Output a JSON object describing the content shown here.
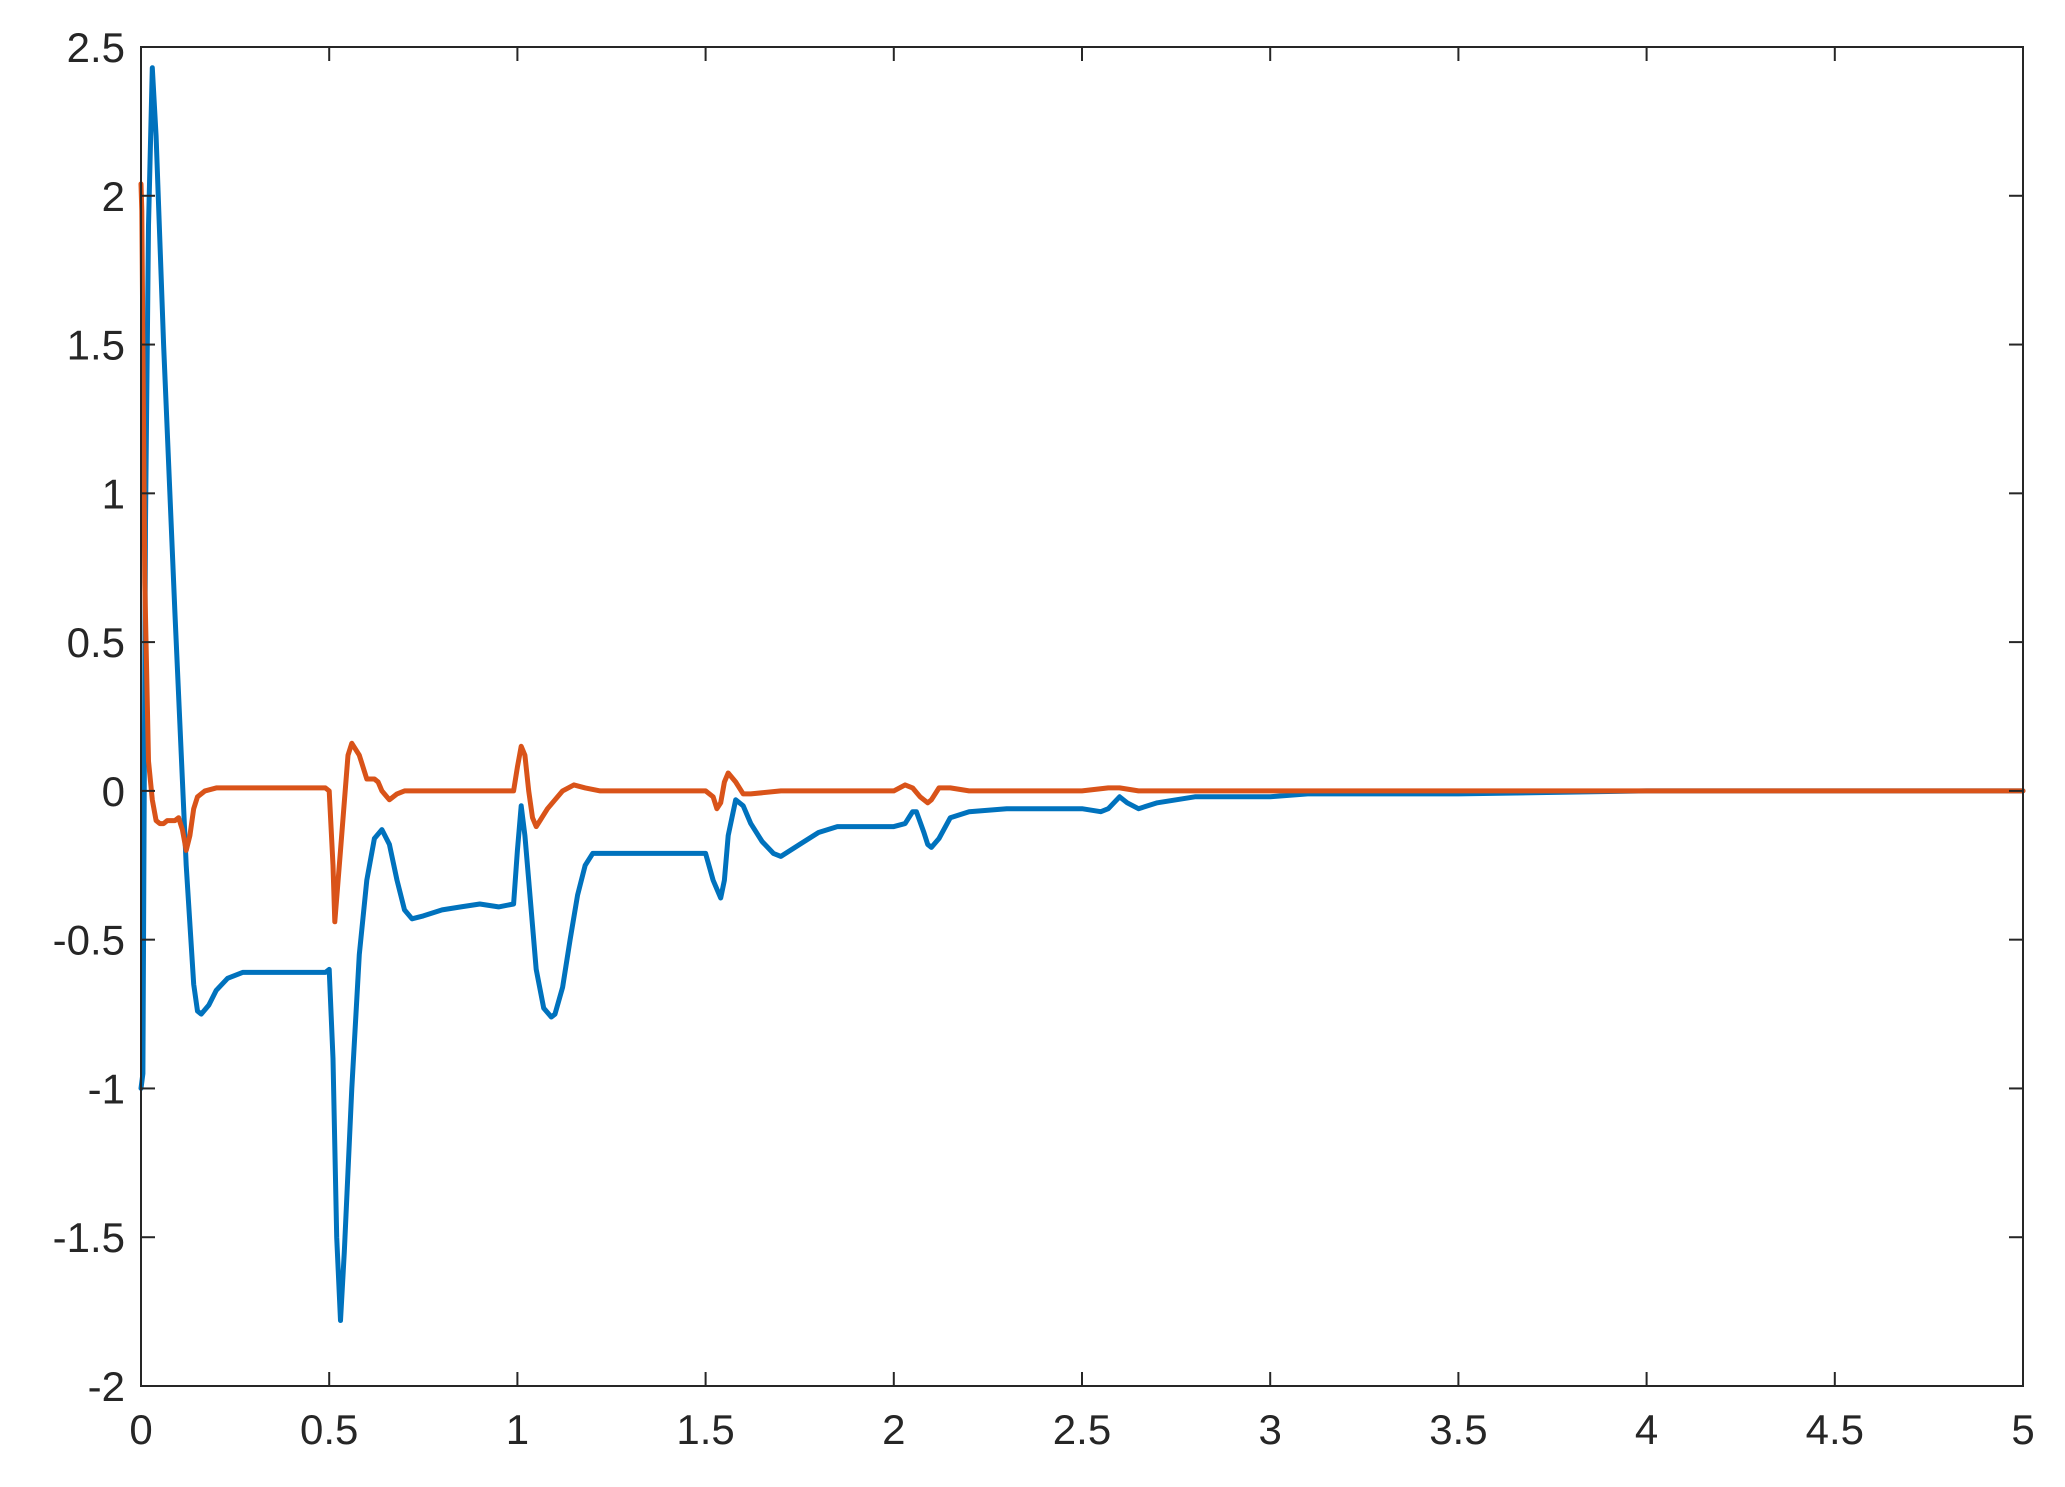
{
  "chart_data": {
    "type": "line",
    "title": "",
    "xlabel": "",
    "ylabel": "",
    "xlim": [
      0,
      5
    ],
    "ylim": [
      -2,
      2.5
    ],
    "xticks": [
      0,
      0.5,
      1,
      1.5,
      2,
      2.5,
      3,
      3.5,
      4,
      4.5,
      5
    ],
    "xtick_labels": [
      "0",
      "0.5",
      "1",
      "1.5",
      "2",
      "2.5",
      "3",
      "3.5",
      "4",
      "4.5",
      "5"
    ],
    "yticks": [
      -2,
      -1.5,
      -1,
      -0.5,
      0,
      0.5,
      1,
      1.5,
      2,
      2.5
    ],
    "ytick_labels": [
      "-2",
      "-1.5",
      "-1",
      "-0.5",
      "0",
      "0.5",
      "1",
      "1.5",
      "2",
      "2.5"
    ],
    "grid": false,
    "legend": "none",
    "series": [
      {
        "color": "#0072BD",
        "x": [
          0,
          0.005,
          0.012,
          0.02,
          0.03,
          0.04,
          0.06,
          0.09,
          0.12,
          0.14,
          0.15,
          0.16,
          0.18,
          0.2,
          0.23,
          0.27,
          0.3,
          0.35,
          0.4,
          0.45,
          0.49,
          0.5,
          0.51,
          0.52,
          0.53,
          0.54,
          0.56,
          0.58,
          0.6,
          0.62,
          0.64,
          0.66,
          0.68,
          0.7,
          0.72,
          0.75,
          0.8,
          0.85,
          0.9,
          0.95,
          0.99,
          1.0,
          1.01,
          1.02,
          1.03,
          1.05,
          1.07,
          1.09,
          1.1,
          1.12,
          1.14,
          1.16,
          1.18,
          1.2,
          1.25,
          1.3,
          1.35,
          1.4,
          1.45,
          1.5,
          1.52,
          1.54,
          1.55,
          1.56,
          1.58,
          1.6,
          1.62,
          1.65,
          1.68,
          1.7,
          1.75,
          1.8,
          1.85,
          1.9,
          1.95,
          2.0,
          2.03,
          2.05,
          2.06,
          2.08,
          2.09,
          2.1,
          2.12,
          2.15,
          2.2,
          2.3,
          2.4,
          2.5,
          2.55,
          2.57,
          2.6,
          2.62,
          2.65,
          2.7,
          2.8,
          2.9,
          3.0,
          3.1,
          3.2,
          3.5,
          4.0,
          4.5,
          5.0
        ],
        "y": [
          -1.0,
          -0.95,
          0.9,
          1.9,
          2.43,
          2.2,
          1.5,
          0.6,
          -0.25,
          -0.65,
          -0.74,
          -0.75,
          -0.72,
          -0.67,
          -0.63,
          -0.61,
          -0.61,
          -0.61,
          -0.61,
          -0.61,
          -0.61,
          -0.6,
          -0.9,
          -1.5,
          -1.78,
          -1.55,
          -1.0,
          -0.55,
          -0.3,
          -0.16,
          -0.13,
          -0.18,
          -0.3,
          -0.4,
          -0.43,
          -0.42,
          -0.4,
          -0.39,
          -0.38,
          -0.39,
          -0.38,
          -0.2,
          -0.05,
          -0.15,
          -0.3,
          -0.6,
          -0.73,
          -0.76,
          -0.75,
          -0.66,
          -0.5,
          -0.35,
          -0.25,
          -0.21,
          -0.21,
          -0.21,
          -0.21,
          -0.21,
          -0.21,
          -0.21,
          -0.3,
          -0.36,
          -0.3,
          -0.15,
          -0.03,
          -0.05,
          -0.11,
          -0.17,
          -0.21,
          -0.22,
          -0.18,
          -0.14,
          -0.12,
          -0.12,
          -0.12,
          -0.12,
          -0.11,
          -0.07,
          -0.07,
          -0.14,
          -0.18,
          -0.19,
          -0.16,
          -0.09,
          -0.07,
          -0.06,
          -0.06,
          -0.06,
          -0.07,
          -0.06,
          -0.02,
          -0.04,
          -0.06,
          -0.04,
          -0.02,
          -0.02,
          -0.02,
          -0.01,
          -0.01,
          -0.01,
          0.0,
          0.0,
          0.0
        ]
      },
      {
        "color": "#D95319",
        "x": [
          0,
          0.002,
          0.005,
          0.01,
          0.02,
          0.03,
          0.04,
          0.05,
          0.06,
          0.07,
          0.09,
          0.1,
          0.11,
          0.12,
          0.13,
          0.14,
          0.15,
          0.17,
          0.2,
          0.3,
          0.4,
          0.49,
          0.5,
          0.51,
          0.515,
          0.53,
          0.55,
          0.56,
          0.58,
          0.6,
          0.62,
          0.63,
          0.64,
          0.66,
          0.68,
          0.7,
          0.75,
          0.8,
          0.9,
          0.99,
          1.0,
          1.01,
          1.02,
          1.03,
          1.04,
          1.05,
          1.06,
          1.08,
          1.1,
          1.12,
          1.15,
          1.18,
          1.22,
          1.3,
          1.4,
          1.5,
          1.52,
          1.53,
          1.54,
          1.55,
          1.56,
          1.58,
          1.6,
          1.62,
          1.7,
          1.8,
          1.9,
          2.0,
          2.03,
          2.05,
          2.07,
          2.09,
          2.1,
          2.12,
          2.15,
          2.2,
          2.5,
          2.57,
          2.6,
          2.65,
          3.0,
          4.0,
          5.0
        ],
        "y": [
          2.04,
          1.95,
          1.5,
          0.7,
          0.1,
          -0.03,
          -0.1,
          -0.11,
          -0.11,
          -0.1,
          -0.1,
          -0.09,
          -0.13,
          -0.2,
          -0.15,
          -0.06,
          -0.02,
          0.0,
          0.01,
          0.01,
          0.01,
          0.01,
          0.0,
          -0.25,
          -0.44,
          -0.2,
          0.12,
          0.16,
          0.12,
          0.04,
          0.04,
          0.03,
          0.0,
          -0.03,
          -0.01,
          0.0,
          0.0,
          0.0,
          0.0,
          0.0,
          0.08,
          0.15,
          0.12,
          0.0,
          -0.09,
          -0.12,
          -0.1,
          -0.06,
          -0.03,
          0.0,
          0.02,
          0.01,
          0.0,
          0.0,
          0.0,
          0.0,
          -0.02,
          -0.06,
          -0.04,
          0.03,
          0.06,
          0.03,
          -0.01,
          -0.01,
          0.0,
          0.0,
          0.0,
          0.0,
          0.02,
          0.01,
          -0.02,
          -0.04,
          -0.03,
          0.01,
          0.01,
          0.0,
          0.0,
          0.01,
          0.01,
          0.0,
          0.0,
          0.0,
          0.0
        ]
      }
    ]
  }
}
